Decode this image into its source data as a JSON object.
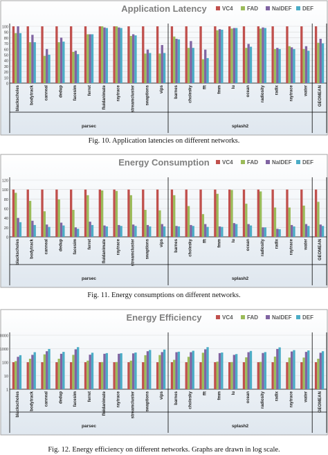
{
  "colors": {
    "VC4": "#c0504d",
    "FAD": "#9bbb59",
    "NalDEF": "#8064a2",
    "DEF": "#4bacc6",
    "frame": "#000000",
    "grid": "#d9d9d9",
    "title": "#7f7f7f",
    "bg_top": "#ffffff",
    "bg_bottom": "#dfe7ef"
  },
  "charts": [
    {
      "caption": "Fig. 10.   Application latencies on different networks.",
      "chart_data": {
        "type": "bar",
        "title": "Application Latency",
        "yscale": "linear",
        "ylim": [
          0,
          100
        ],
        "yticks": [
          "0",
          "10",
          "20",
          "30",
          "40",
          "50",
          "60",
          "70",
          "80",
          "90",
          "100"
        ],
        "legend": [
          "VC4",
          "FAD",
          "NalDEF",
          "DEF"
        ],
        "legend_position": "top-right",
        "groups": [
          {
            "label": "parsec",
            "categories": [
              "blackscholes",
              "bodytrack",
              "canneal",
              "dedup",
              "facesim",
              "ferret",
              "fluidanimate",
              "raytrace",
              "streamcluster",
              "swaptions",
              "vips"
            ]
          },
          {
            "label": "splash2",
            "categories": [
              "barnes",
              "cholesky",
              "fft",
              "fmm",
              "lu",
              "ocean",
              "radiosity",
              "radix",
              "raytrace",
              "water"
            ]
          },
          {
            "label": "",
            "categories": [
              "GEOMEAN"
            ]
          }
        ],
        "series": [
          {
            "name": "VC4",
            "values": [
              100,
              100,
              100,
              100,
              100,
              100,
              100,
              100,
              100,
              100,
              100,
              100,
              100,
              100,
              100,
              100,
              100,
              100,
              100,
              100,
              100,
              100
            ]
          },
          {
            "name": "FAD",
            "values": [
              88,
              72,
              48,
              72,
              55,
              86,
              100,
              100,
              83,
              52,
              52,
              82,
              62,
              42,
              93,
              96,
              62,
              96,
              60,
              65,
              60,
              71
            ]
          },
          {
            "name": "NalDEF",
            "values": [
              100,
              85,
              60,
              80,
              57,
              86,
              98,
              98,
              86,
              59,
              67,
              78,
              74,
              59,
              95,
              97,
              69,
              98,
              62,
              63,
              65,
              78
            ]
          },
          {
            "name": "DEF",
            "values": [
              88,
              72,
              50,
              73,
              51,
              86,
              97,
              97,
              84,
              53,
              53,
              77,
              62,
              44,
              94,
              97,
              64,
              97,
              60,
              60,
              57,
              70
            ]
          }
        ]
      }
    },
    {
      "caption": "Fig. 11.   Energy consumptions on different networks.",
      "chart_data": {
        "type": "bar",
        "title": "Energy Consumption",
        "yscale": "linear",
        "ylim": [
          0,
          120
        ],
        "yticks": [
          "0",
          "20",
          "40",
          "60",
          "80",
          "100",
          "120"
        ],
        "legend": [
          "VC4",
          "FAD",
          "NalDEF",
          "DEF"
        ],
        "legend_position": "top-right",
        "groups": [
          {
            "label": "parsec",
            "categories": [
              "blackscholes",
              "bodytrack",
              "canneal",
              "dedup",
              "facesim",
              "ferret",
              "fluidanimate",
              "raytrace",
              "streamcluster",
              "swaptions",
              "vips"
            ]
          },
          {
            "label": "splash2",
            "categories": [
              "barnes",
              "cholesky",
              "fft",
              "fmm",
              "lu",
              "ocean",
              "radiosity",
              "radix",
              "raytrace",
              "water"
            ]
          },
          {
            "label": "",
            "categories": [
              "GEOMEAN"
            ]
          }
        ],
        "series": [
          {
            "name": "VC4",
            "values": [
              100,
              100,
              100,
              100,
              100,
              100,
              100,
              100,
              100,
              100,
              100,
              100,
              100,
              100,
              100,
              100,
              100,
              100,
              100,
              100,
              100,
              100
            ]
          },
          {
            "name": "FAD",
            "values": [
              93,
              76,
              54,
              79,
              57,
              88,
              98,
              97,
              88,
              57,
              56,
              88,
              65,
              48,
              91,
              99,
              70,
              96,
              62,
              62,
              66,
              74
            ]
          },
          {
            "name": "NalDEF",
            "values": [
              40,
              34,
              26,
              30,
              20,
              32,
              24,
              25,
              26,
              25,
              27,
              23,
              25,
              27,
              22,
              29,
              27,
              20,
              17,
              25,
              27,
              26
            ]
          },
          {
            "name": "DEF",
            "values": [
              31,
              25,
              21,
              24,
              17,
              25,
              22,
              23,
              23,
              22,
              22,
              22,
              23,
              21,
              21,
              27,
              24,
              20,
              16,
              22,
              23,
              23
            ]
          }
        ]
      }
    },
    {
      "caption": "Fig. 12.   Energy efficiency on different networks. Graphs are drawn in log scale.",
      "chart_data": {
        "type": "bar",
        "title": "Energy Efficiency",
        "yscale": "log",
        "ylim": [
          1,
          10000
        ],
        "yticks": [
          "1",
          "10",
          "100",
          "1000",
          "10000"
        ],
        "legend": [
          "VC4",
          "FAD",
          "NalDEF",
          "DEF"
        ],
        "legend_position": "top-right",
        "groups": [
          {
            "label": "parsec",
            "categories": [
              "blackscholes",
              "bodytrack",
              "canneal",
              "dedup",
              "facesim",
              "ferret",
              "fluidanimate",
              "raytrace",
              "streamcluster",
              "swaptions",
              "vips"
            ]
          },
          {
            "label": "splash2",
            "categories": [
              "barnes",
              "cholesky",
              "fft",
              "fmm",
              "lu",
              "ocean",
              "radiosity",
              "radix",
              "raytrace",
              "water"
            ]
          },
          {
            "label": "",
            "categories": [
              "GEOMEAN"
            ]
          }
        ],
        "series": [
          {
            "name": "VC4",
            "values": [
              100,
              100,
              100,
              100,
              100,
              100,
              100,
              100,
              100,
              100,
              100,
              100,
              100,
              100,
              100,
              100,
              100,
              100,
              100,
              100,
              100,
              100
            ]
          },
          {
            "name": "FAD",
            "values": [
              120,
              180,
              380,
              180,
              350,
              130,
              102,
              103,
              130,
              330,
              340,
              150,
              250,
              500,
              110,
              102,
              230,
              105,
              260,
              220,
              220,
              180
            ]
          },
          {
            "name": "NalDEF",
            "values": [
              250,
              350,
              650,
              420,
              900,
              360,
              420,
              420,
              450,
              650,
              560,
              550,
              550,
              900,
              470,
              350,
              550,
              480,
              950,
              620,
              580,
              500
            ]
          },
          {
            "name": "DEF",
            "values": [
              330,
              550,
              950,
              580,
              1300,
              500,
              470,
              460,
              520,
              800,
              860,
              600,
              700,
              1300,
              520,
              400,
              680,
              560,
              1250,
              780,
              740,
              650
            ]
          }
        ]
      }
    }
  ]
}
